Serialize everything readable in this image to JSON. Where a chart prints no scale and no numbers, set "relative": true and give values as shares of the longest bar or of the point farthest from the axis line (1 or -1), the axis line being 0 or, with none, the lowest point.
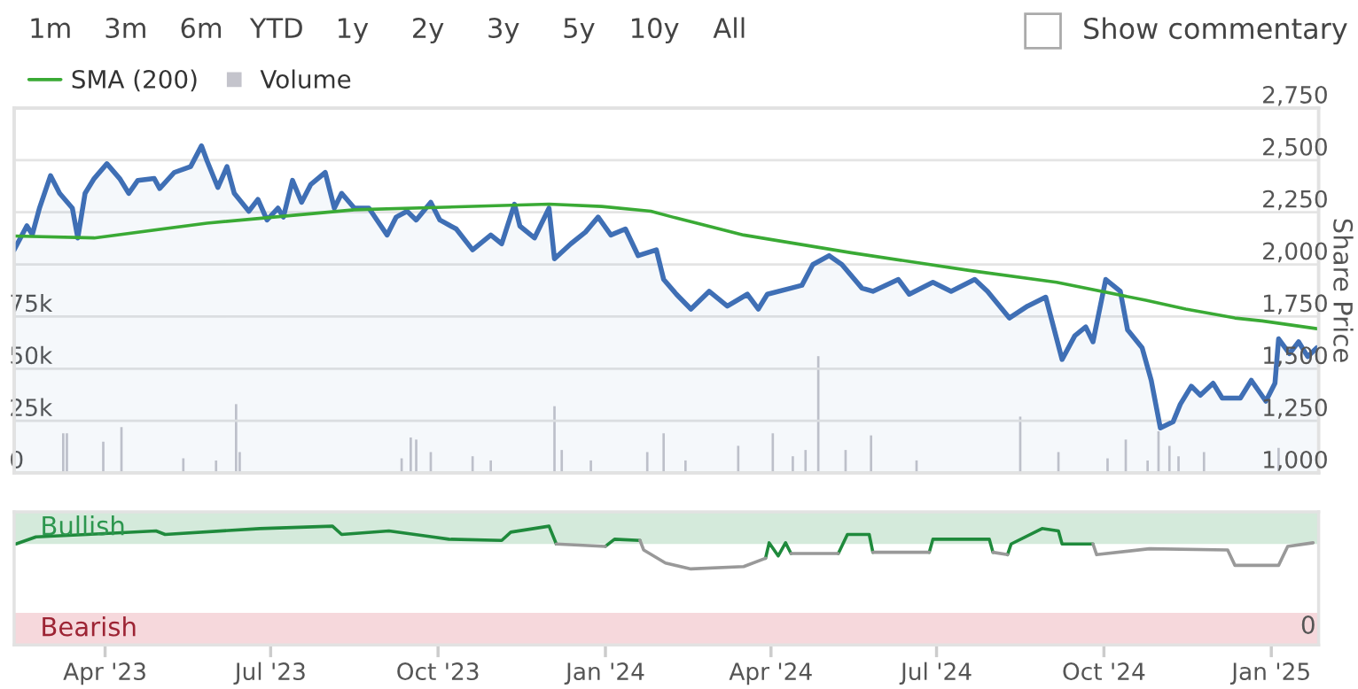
{
  "chart_data": [
    {
      "type": "line",
      "legend": "top left",
      "grid": true,
      "tick_labels": "y",
      "annotations": [
        "1m",
        "3m",
        "6m",
        "YTD",
        "1y",
        "2y",
        "3y",
        "5y",
        "10y",
        "All",
        "Show commentary"
      ],
      "xlim": [
        "2023-02-10",
        "2025-01-27"
      ],
      "ylim": [
        0,
        175000
      ],
      "yticks": [
        0,
        {
          "value": 25000,
          "label": "25k"
        },
        {
          "value": 50000,
          "label": "50k"
        },
        {
          "value": 75000,
          "label": "75k"
        }
      ],
      "y2lim": [
        1000,
        2750
      ],
      "y2ticks": [
        {
          "value": 1000,
          "label": "1,000"
        },
        {
          "value": 1250,
          "label": "1,250"
        },
        {
          "value": 1500,
          "label": "1,500"
        },
        {
          "value": 1750,
          "label": "1,750"
        },
        {
          "value": 2000,
          "label": "2,000"
        },
        {
          "value": 2250,
          "label": "2,250"
        },
        {
          "value": 2500,
          "label": "2,500"
        },
        {
          "value": 2750,
          "label": "2,750"
        }
      ],
      "y2label": "Share Price",
      "series": [
        {
          "name": "Volume",
          "type": "bar",
          "color": "#c4c4cc",
          "x": [
            "2023-03-09",
            "2023-03-11",
            "2023-03-31",
            "2023-04-10",
            "2023-05-14",
            "2023-06-01",
            "2023-06-12",
            "2023-06-14",
            "2023-09-11",
            "2023-09-16",
            "2023-09-19",
            "2023-09-27",
            "2023-10-20",
            "2023-10-30",
            "2023-12-04",
            "2023-12-08",
            "2023-12-24",
            "2024-01-24",
            "2024-02-02",
            "2024-02-14",
            "2024-03-14",
            "2024-04-02",
            "2024-04-13",
            "2024-04-20",
            "2024-04-27",
            "2024-05-12",
            "2024-05-26",
            "2024-06-20",
            "2024-08-16",
            "2024-09-06",
            "2024-10-03",
            "2024-10-13",
            "2024-10-25",
            "2024-10-31",
            "2024-11-06",
            "2024-11-11",
            "2024-11-25",
            "2025-01-05"
          ],
          "values": [
            19000,
            19000,
            15000,
            22000,
            7000,
            6000,
            33000,
            10000,
            7000,
            17000,
            16000,
            10000,
            8000,
            6000,
            32000,
            11000,
            6000,
            10000,
            19000,
            6000,
            13000,
            19000,
            8000,
            11000,
            56000,
            11000,
            18000,
            6000,
            27000,
            10000,
            7000,
            16000,
            6000,
            20000,
            13000,
            8000,
            10000,
            12000
          ]
        },
        {
          "type": "area",
          "axis": "y2",
          "color": "#3f6fb5",
          "x": [
            "2023-02-10",
            "2023-02-17",
            "2023-02-20",
            "2023-02-24",
            "2023-03-02",
            "2023-03-07",
            "2023-03-14",
            "2023-03-17",
            "2023-03-21",
            "2023-03-26",
            "2023-04-02",
            "2023-04-09",
            "2023-04-14",
            "2023-04-19",
            "2023-04-28",
            "2023-05-01",
            "2023-05-09",
            "2023-05-18",
            "2023-05-24",
            "2023-05-27",
            "2023-06-02",
            "2023-06-07",
            "2023-06-11",
            "2023-06-19",
            "2023-06-24",
            "2023-06-29",
            "2023-07-05",
            "2023-07-08",
            "2023-07-13",
            "2023-07-18",
            "2023-07-23",
            "2023-07-31",
            "2023-08-05",
            "2023-08-09",
            "2023-08-16",
            "2023-08-24",
            "2023-09-03",
            "2023-09-08",
            "2023-09-14",
            "2023-09-19",
            "2023-09-27",
            "2023-10-02",
            "2023-10-11",
            "2023-10-20",
            "2023-10-30",
            "2023-11-05",
            "2023-11-12",
            "2023-11-15",
            "2023-11-23",
            "2023-12-01",
            "2023-12-04",
            "2023-12-13",
            "2023-12-21",
            "2023-12-28",
            "2024-01-04",
            "2024-01-12",
            "2024-01-19",
            "2024-01-29",
            "2024-02-02",
            "2024-02-09",
            "2024-02-17",
            "2024-02-27",
            "2024-03-08",
            "2024-03-19",
            "2024-03-25",
            "2024-03-30",
            "2024-04-12",
            "2024-04-18",
            "2024-04-24",
            "2024-05-03",
            "2024-05-10",
            "2024-05-21",
            "2024-05-27",
            "2024-06-10",
            "2024-06-16",
            "2024-06-29",
            "2024-07-09",
            "2024-07-22",
            "2024-07-29",
            "2024-08-10",
            "2024-08-20",
            "2024-08-30",
            "2024-09-08",
            "2024-09-15",
            "2024-09-21",
            "2024-09-25",
            "2024-10-02",
            "2024-10-10",
            "2024-10-14",
            "2024-10-22",
            "2024-10-27",
            "2024-11-01",
            "2024-11-08",
            "2024-11-12",
            "2024-11-18",
            "2024-11-23",
            "2024-11-30",
            "2024-12-05",
            "2024-12-15",
            "2024-12-21",
            "2024-12-29",
            "2025-01-03",
            "2025-01-05",
            "2025-01-11",
            "2025-01-16",
            "2025-01-21",
            "2025-01-26"
          ],
          "values": [
            2070,
            2185,
            2144,
            2272,
            2426,
            2341,
            2270,
            2127,
            2341,
            2412,
            2483,
            2412,
            2341,
            2403,
            2412,
            2364,
            2441,
            2469,
            2569,
            2497,
            2369,
            2469,
            2341,
            2255,
            2312,
            2213,
            2270,
            2227,
            2403,
            2298,
            2383,
            2441,
            2270,
            2341,
            2270,
            2270,
            2141,
            2227,
            2255,
            2213,
            2298,
            2213,
            2170,
            2070,
            2141,
            2099,
            2289,
            2184,
            2127,
            2270,
            2027,
            2099,
            2155,
            2227,
            2141,
            2170,
            2042,
            2070,
            1928,
            1857,
            1786,
            1871,
            1800,
            1857,
            1786,
            1857,
            1886,
            1900,
            1999,
            2042,
            1999,
            1886,
            1871,
            1928,
            1857,
            1914,
            1871,
            1928,
            1871,
            1743,
            1800,
            1843,
            1544,
            1658,
            1700,
            1629,
            1928,
            1871,
            1686,
            1600,
            1444,
            1216,
            1245,
            1330,
            1416,
            1373,
            1430,
            1359,
            1359,
            1444,
            1344,
            1430,
            1643,
            1572,
            1629,
            1558,
            1600
          ]
        },
        {
          "name": "SMA (200)",
          "axis": "y2",
          "color": "#3aaa35",
          "x": [
            "2023-02-10",
            "2023-03-26",
            "2023-05-27",
            "2023-08-16",
            "2023-12-01",
            "2023-12-30",
            "2024-01-26",
            "2024-02-07",
            "2024-03-17",
            "2024-05-15",
            "2024-07-19",
            "2024-09-05",
            "2024-10-24",
            "2024-11-15",
            "2024-12-12",
            "2024-12-27",
            "2025-01-26"
          ],
          "values": [
            2136,
            2127,
            2198,
            2262,
            2289,
            2278,
            2255,
            2227,
            2141,
            2056,
            1971,
            1914,
            1828,
            1786,
            1743,
            1729,
            1692
          ]
        }
      ]
    },
    {
      "type": "line",
      "relative": true,
      "tick_labels": "x",
      "annotations": [
        "0"
      ],
      "xlim": [
        "2023-02-10",
        "2025-01-27"
      ],
      "xticks": [
        {
          "value": "2023-04-01",
          "label": "Apr '23"
        },
        {
          "value": "2023-07-01",
          "label": "Jul '23"
        },
        {
          "value": "2023-10-01",
          "label": "Oct '23"
        },
        {
          "value": "2024-01-01",
          "label": "Jan '24"
        },
        {
          "value": "2024-04-01",
          "label": "Apr '24"
        },
        {
          "value": "2024-07-01",
          "label": "Jul '24"
        },
        {
          "value": "2024-10-01",
          "label": "Oct '24"
        },
        {
          "value": "2025-01-01",
          "label": "Jan '25"
        }
      ],
      "bands": [
        {
          "axis": "y",
          "from": 0.85,
          "to": 1.12,
          "label": "Bullish",
          "color": "#d4eadb"
        },
        {
          "axis": "y",
          "from": 0,
          "to": 0.27,
          "label": "Bearish",
          "color": "#f6d8dc"
        }
      ],
      "series": [
        {
          "color": "#1f8a3c",
          "x": [
            "2023-02-11",
            "2023-02-22",
            "2023-03-22",
            "2023-04-29",
            "2023-05-04",
            "2023-06-25",
            "2023-08-04",
            "2023-08-09",
            "2023-09-04",
            "2023-09-28",
            "2023-10-07",
            "2023-11-05",
            "2023-11-10",
            "2023-12-01",
            "2023-12-05",
            "2023-12-20",
            "2024-01-01",
            "2024-01-06",
            "2024-01-20",
            "2024-02-15",
            "2024-03-29",
            "2024-03-31",
            "2024-04-05",
            "2024-04-09",
            "2024-04-12",
            "2024-04-25",
            "2024-05-08",
            "2024-05-13",
            "2024-05-25",
            "2024-05-27",
            "2024-06-10",
            "2024-06-27",
            "2024-06-29",
            "2024-07-30",
            "2024-08-01",
            "2024-08-05",
            "2024-08-09",
            "2024-08-11",
            "2024-08-28",
            "2024-09-06",
            "2024-09-08",
            "2024-09-25"
          ],
          "values": [
            0.85,
            0.91,
            0.93,
            0.96,
            0.93,
            0.98,
            1.0,
            0.93,
            0.96,
            0.91,
            0.89,
            0.88,
            0.95,
            1.0,
            0.85,
            null,
            0.83,
            0.89,
            0.88,
            null,
            0.73,
            0.86,
            0.75,
            0.86,
            0.77,
            null,
            0.77,
            0.93,
            0.93,
            0.78,
            null,
            0.78,
            0.89,
            0.89,
            0.78,
            null,
            0.76,
            0.85,
            0.98,
            0.96,
            0.85,
            0.85
          ]
        },
        {
          "color": "#999999",
          "x": [
            "2023-12-05",
            "2024-01-01",
            "2024-01-10",
            "2024-01-20",
            "2024-01-22",
            "2024-02-03",
            "2024-02-17",
            "2024-03-17",
            "2024-03-29",
            "2024-04-05",
            "2024-04-12",
            "2024-05-08",
            "2024-05-15",
            "2024-05-27",
            "2024-06-27",
            "2024-07-10",
            "2024-08-01",
            "2024-08-09",
            "2024-08-20",
            "2024-09-25",
            "2024-09-27",
            "2024-10-26",
            "2024-12-08",
            "2024-12-12",
            "2025-01-05",
            "2025-01-10",
            "2025-01-24"
          ],
          "values": [
            0.85,
            0.83,
            null,
            0.88,
            0.8,
            0.69,
            0.64,
            0.66,
            0.73,
            null,
            0.77,
            0.77,
            null,
            0.78,
            0.78,
            null,
            0.78,
            0.76,
            null,
            0.85,
            0.76,
            0.81,
            0.8,
            0.67,
            0.67,
            0.83,
            0.86
          ]
        }
      ]
    }
  ]
}
